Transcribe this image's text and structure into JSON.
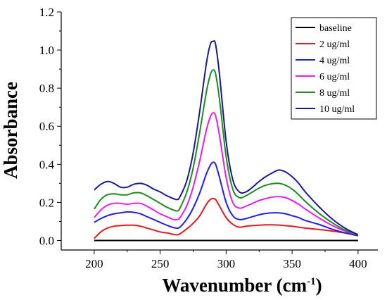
{
  "chart_data": {
    "type": "line",
    "xlabel": "Wavenumber (cm",
    "xlabel_sup": "-1",
    "xlabel_close": ")",
    "ylabel": "Absorbance",
    "xlim": [
      175,
      415
    ],
    "ylim": [
      -0.05,
      1.2
    ],
    "xticks": [
      200,
      250,
      300,
      350,
      400
    ],
    "xtick_labels": [
      "200",
      "250",
      "300",
      "350",
      "400"
    ],
    "yticks": [
      0.0,
      0.2,
      0.4,
      0.6,
      0.8,
      1.0,
      1.2
    ],
    "ytick_labels": [
      "0.0",
      "0.2",
      "0.4",
      "0.6",
      "0.8",
      "1.0",
      "1.2"
    ],
    "legend_position": "top-right",
    "x": [
      200,
      205,
      210,
      215,
      220,
      225,
      230,
      235,
      240,
      245,
      250,
      255,
      260,
      263,
      265,
      270,
      275,
      280,
      285,
      288,
      290,
      292,
      295,
      300,
      305,
      310,
      315,
      320,
      325,
      330,
      335,
      340,
      345,
      350,
      355,
      360,
      370,
      380,
      390,
      400
    ],
    "series": [
      {
        "name": "baseline",
        "color": "#000000",
        "values": [
          0,
          0,
          0,
          0,
          0,
          0,
          0,
          0,
          0,
          0,
          0,
          0,
          0,
          0,
          0,
          0,
          0,
          0,
          0,
          0,
          0,
          0,
          0,
          0,
          0,
          0,
          0,
          0,
          0,
          0,
          0,
          0,
          0,
          0,
          0,
          0,
          0,
          0,
          0,
          0
        ]
      },
      {
        "name": "2 ug/ml",
        "color": "#e4191c",
        "values": [
          0.01,
          0.045,
          0.065,
          0.075,
          0.078,
          0.08,
          0.08,
          0.075,
          0.065,
          0.055,
          0.045,
          0.04,
          0.032,
          0.03,
          0.035,
          0.06,
          0.09,
          0.13,
          0.19,
          0.215,
          0.22,
          0.215,
          0.18,
          0.12,
          0.085,
          0.07,
          0.075,
          0.078,
          0.08,
          0.082,
          0.082,
          0.081,
          0.078,
          0.075,
          0.07,
          0.065,
          0.058,
          0.05,
          0.04,
          0.03
        ]
      },
      {
        "name": "4 ug/ml",
        "color": "#1f1fe0",
        "values": [
          0.095,
          0.115,
          0.13,
          0.14,
          0.145,
          0.15,
          0.148,
          0.14,
          0.125,
          0.11,
          0.095,
          0.08,
          0.068,
          0.065,
          0.07,
          0.11,
          0.17,
          0.25,
          0.35,
          0.395,
          0.41,
          0.4,
          0.33,
          0.2,
          0.13,
          0.11,
          0.115,
          0.125,
          0.135,
          0.142,
          0.145,
          0.145,
          0.14,
          0.13,
          0.12,
          0.105,
          0.085,
          0.06,
          0.04,
          0.025
        ]
      },
      {
        "name": "6 ug/ml",
        "color": "#e81ee8",
        "values": [
          0.12,
          0.16,
          0.185,
          0.195,
          0.195,
          0.19,
          0.195,
          0.195,
          0.18,
          0.16,
          0.14,
          0.125,
          0.11,
          0.11,
          0.12,
          0.18,
          0.28,
          0.42,
          0.58,
          0.65,
          0.67,
          0.655,
          0.55,
          0.33,
          0.2,
          0.17,
          0.18,
          0.195,
          0.21,
          0.22,
          0.228,
          0.23,
          0.225,
          0.21,
          0.19,
          0.165,
          0.12,
          0.08,
          0.05,
          0.03
        ]
      },
      {
        "name": "8 ug/ml",
        "color": "#1f8a1f",
        "values": [
          0.165,
          0.215,
          0.24,
          0.245,
          0.24,
          0.24,
          0.25,
          0.25,
          0.235,
          0.215,
          0.195,
          0.175,
          0.16,
          0.155,
          0.17,
          0.25,
          0.38,
          0.57,
          0.78,
          0.87,
          0.895,
          0.875,
          0.74,
          0.44,
          0.27,
          0.225,
          0.235,
          0.255,
          0.275,
          0.29,
          0.298,
          0.3,
          0.29,
          0.27,
          0.24,
          0.205,
          0.145,
          0.095,
          0.055,
          0.03
        ]
      },
      {
        "name": "10 ug/ml",
        "color": "#1a1a8c",
        "values": [
          0.265,
          0.295,
          0.31,
          0.3,
          0.28,
          0.28,
          0.295,
          0.3,
          0.29,
          0.27,
          0.255,
          0.235,
          0.22,
          0.215,
          0.23,
          0.31,
          0.46,
          0.68,
          0.93,
          1.03,
          1.045,
          1.03,
          0.87,
          0.52,
          0.32,
          0.255,
          0.255,
          0.28,
          0.31,
          0.335,
          0.355,
          0.37,
          0.36,
          0.335,
          0.3,
          0.255,
          0.18,
          0.115,
          0.065,
          0.03
        ]
      }
    ]
  }
}
